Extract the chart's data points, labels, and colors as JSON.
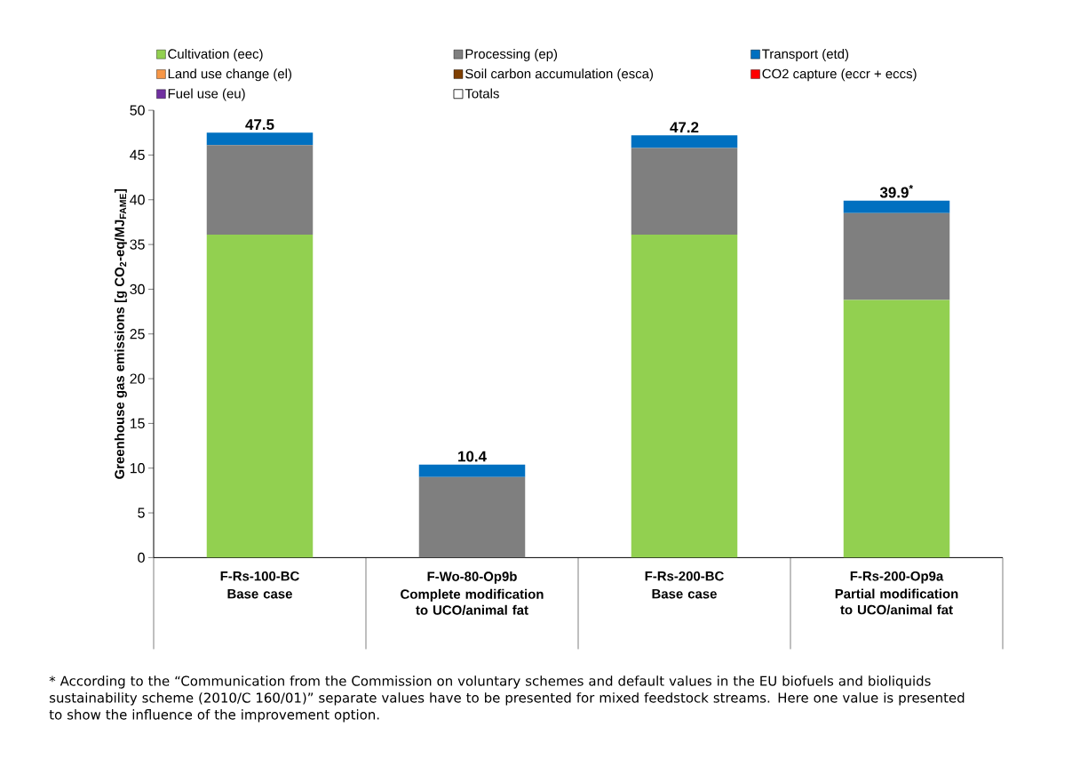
{
  "chart_data": {
    "type": "bar",
    "stacked": true,
    "legend": "top",
    "ylabel": "Greenhouse gas emissions  [g CO$_{2}$-eq/MJ$_{FAME}$]",
    "categories": [
      "F-Rs-100-BC",
      "F-Wo-80-Op9b",
      "F-Rs-200-BC",
      "F-Rs-200-Op9a"
    ],
    "ylim": [
      0,
      50
    ],
    "yticks": [
      0,
      5,
      10,
      15,
      20,
      25,
      30,
      35,
      40,
      45,
      50
    ],
    "series": [
      {
        "name": "Cultivation (eec)",
        "color": "#92d050",
        "values": [
          36.1,
          0,
          36.1,
          28.8
        ]
      },
      {
        "name": "Processing (ep)",
        "color": "#7f7f7f",
        "values": [
          10.0,
          9.0,
          9.7,
          9.7
        ]
      },
      {
        "name": "Transport (etd)",
        "color": "#0070c0",
        "values": [
          1.4,
          1.4,
          1.4,
          1.4
        ]
      },
      {
        "name": "Land use change (el)",
        "color": "#f79646",
        "values": [
          null,
          null,
          null,
          null
        ]
      },
      {
        "name": "Soil carbon accumulation (esca)",
        "color": "#7f3f00",
        "values": [
          null,
          null,
          null,
          null
        ]
      },
      {
        "name": "CO2 capture (eccr + eccs)",
        "color": "#ff0000",
        "values": [
          null,
          null,
          null,
          null
        ]
      },
      {
        "name": "Fuel use (eu)",
        "color": "#7030a0",
        "values": [
          null,
          null,
          null,
          null
        ]
      },
      {
        "name": "Totals",
        "color": "#ffffff",
        "values": [
          null,
          null,
          null,
          null
        ]
      }
    ],
    "totals": [
      "47.5",
      "10.4",
      "47.2",
      "39.9$^{*}$"
    ],
    "annotations": [
      "Base case",
      "Complete modification to UCO/animal fat",
      "Base case",
      "Partial modification to UCO/animal fat",
      "* According to the “Communication from the Commission on voluntary schemes and default values in the EU biofuels and bioliquids sustainability scheme (2010/C 160/01)” separate values have to be presented for mixed feedstock streams. Here one value is presented to show the influence of the improvement option."
    ]
  }
}
